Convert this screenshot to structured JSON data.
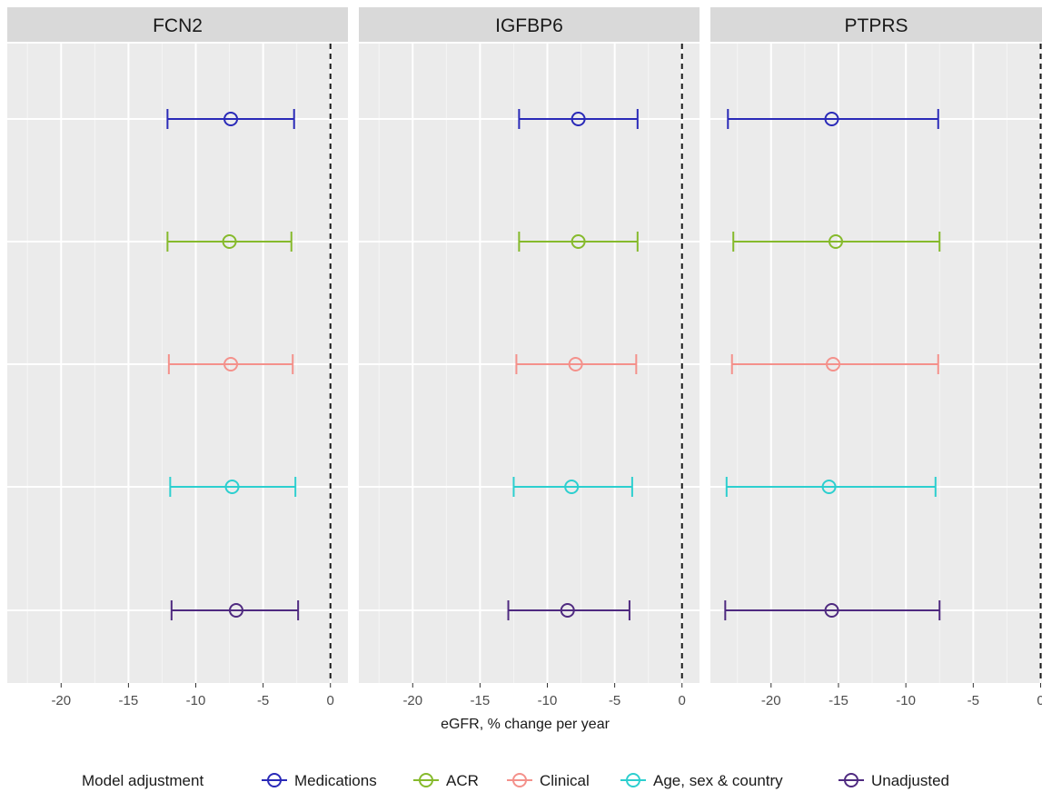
{
  "chart_data": {
    "type": "scatter",
    "subtype": "forest-plot-faceted",
    "xlabel": "eGFR, % change per year",
    "x_ticks": [
      -20,
      -15,
      -10,
      -5,
      0
    ],
    "reference_line_x": 0,
    "grid": true,
    "legend": {
      "title": "Model adjustment",
      "placement": "bottom",
      "entries": [
        "Medications",
        "ACR",
        "Clinical",
        "Age, sex & country",
        "Unadjusted"
      ]
    },
    "series_colors": {
      "Medications": "#2a2ab8",
      "ACR": "#86ba2c",
      "Clinical": "#f4918b",
      "Age, sex & country": "#2dcfcf",
      "Unadjusted": "#4f2a80"
    },
    "row_order": [
      "Medications",
      "ACR",
      "Clinical",
      "Age, sex & country",
      "Unadjusted"
    ],
    "facets": [
      {
        "name": "FCN2",
        "xlim": [
          -24.0,
          1.3
        ],
        "series": [
          {
            "name": "Medications",
            "estimate": -7.4,
            "lower": -12.1,
            "upper": -2.7
          },
          {
            "name": "ACR",
            "estimate": -7.5,
            "lower": -12.1,
            "upper": -2.9
          },
          {
            "name": "Clinical",
            "estimate": -7.4,
            "lower": -12.0,
            "upper": -2.8
          },
          {
            "name": "Age, sex & country",
            "estimate": -7.3,
            "lower": -11.9,
            "upper": -2.6
          },
          {
            "name": "Unadjusted",
            "estimate": -7.0,
            "lower": -11.8,
            "upper": -2.4
          }
        ]
      },
      {
        "name": "IGFBP6",
        "xlim": [
          -24.0,
          1.3
        ],
        "series": [
          {
            "name": "Medications",
            "estimate": -7.7,
            "lower": -12.1,
            "upper": -3.3
          },
          {
            "name": "ACR",
            "estimate": -7.7,
            "lower": -12.1,
            "upper": -3.3
          },
          {
            "name": "Clinical",
            "estimate": -7.9,
            "lower": -12.3,
            "upper": -3.4
          },
          {
            "name": "Age, sex & country",
            "estimate": -8.2,
            "lower": -12.5,
            "upper": -3.7
          },
          {
            "name": "Unadjusted",
            "estimate": -8.5,
            "lower": -12.9,
            "upper": -3.9
          }
        ]
      },
      {
        "name": "PTPRS",
        "xlim": [
          -24.5,
          0.1
        ],
        "series": [
          {
            "name": "Medications",
            "estimate": -15.5,
            "lower": -23.2,
            "upper": -7.6
          },
          {
            "name": "ACR",
            "estimate": -15.2,
            "lower": -22.8,
            "upper": -7.5
          },
          {
            "name": "Clinical",
            "estimate": -15.4,
            "lower": -22.9,
            "upper": -7.6
          },
          {
            "name": "Age, sex & country",
            "estimate": -15.7,
            "lower": -23.3,
            "upper": -7.8
          },
          {
            "name": "Unadjusted",
            "estimate": -15.5,
            "lower": -23.4,
            "upper": -7.5
          }
        ]
      }
    ]
  }
}
